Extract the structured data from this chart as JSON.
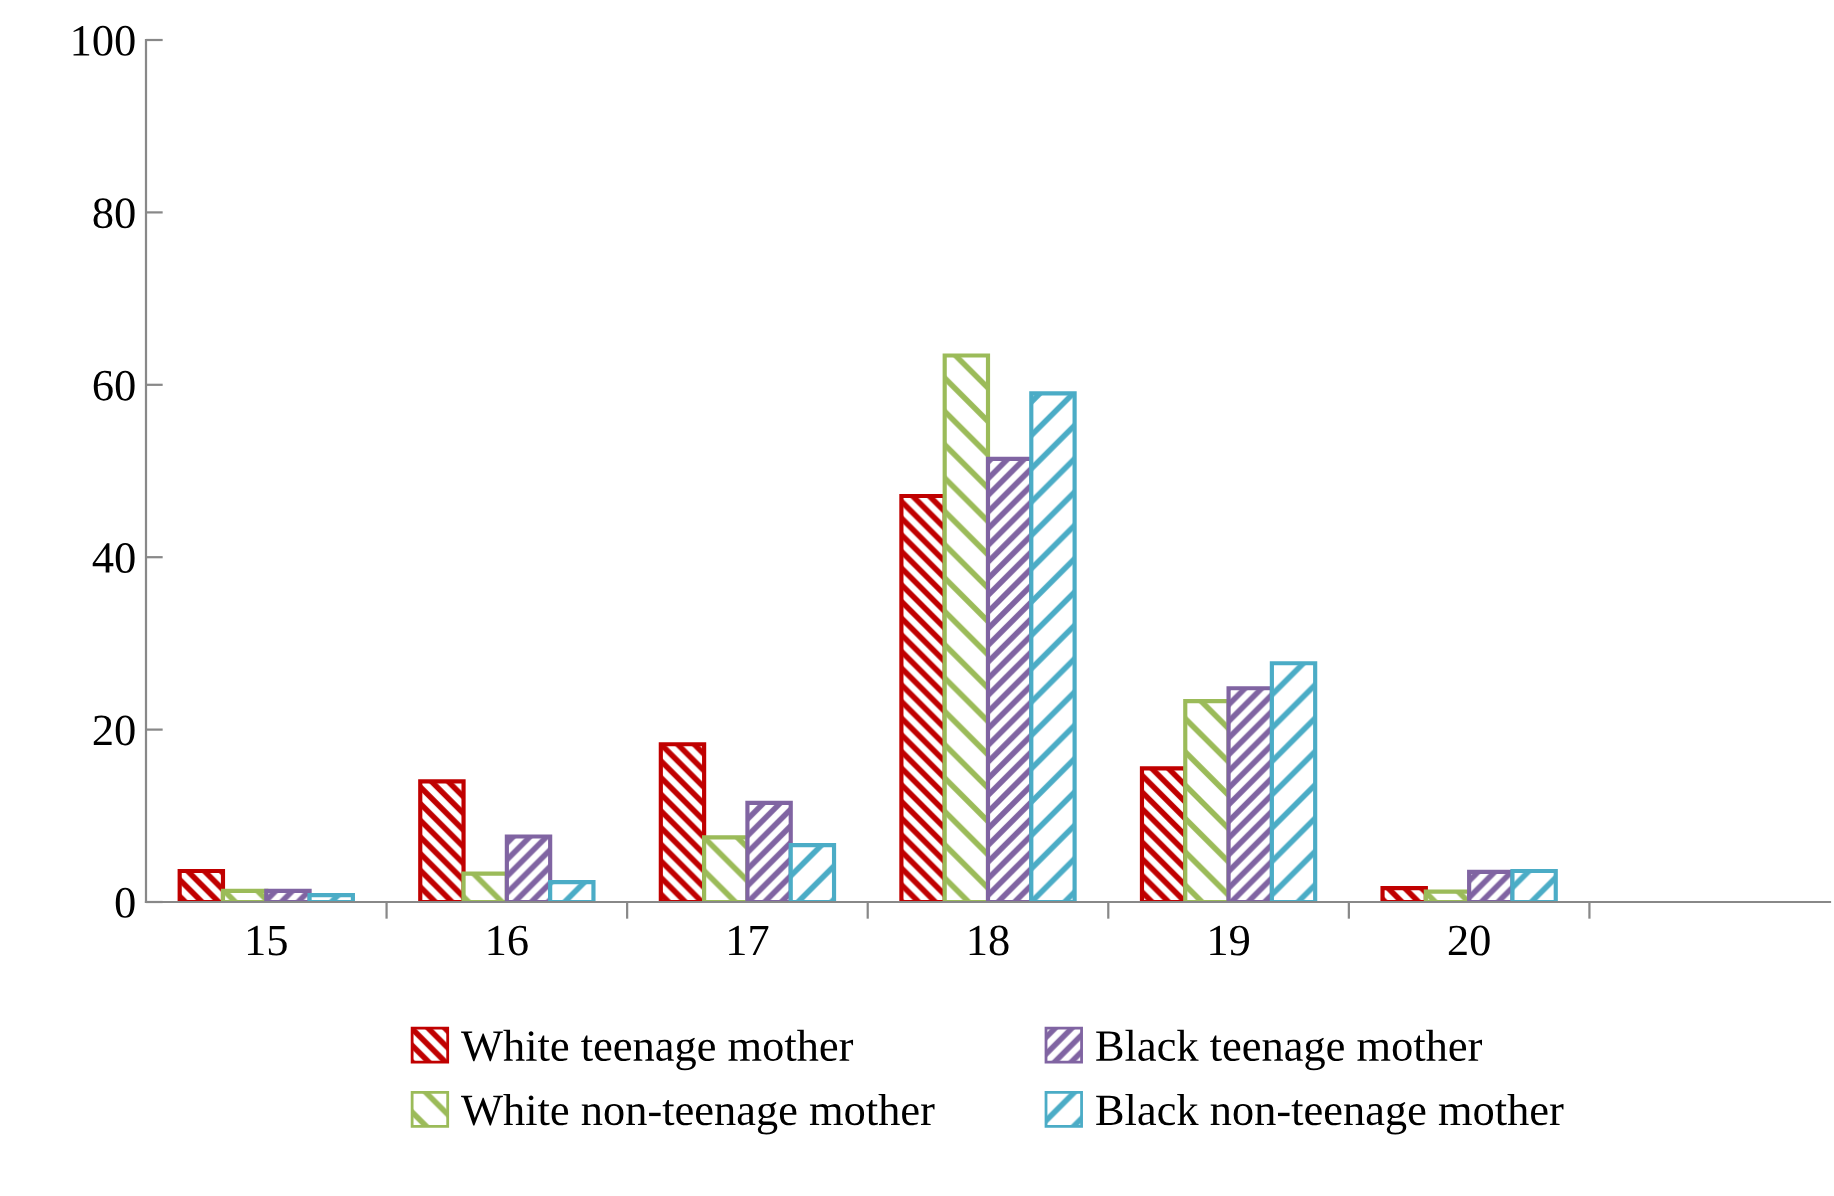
{
  "chart_data": {
    "type": "bar",
    "categories": [
      "15",
      "16",
      "17",
      "18",
      "19",
      "20",
      null
    ],
    "series": [
      {
        "name": "White teenage mother",
        "color": "#c00000",
        "values": [
          3.6,
          14.0,
          18.3,
          47.1,
          15.5,
          1.6,
          null
        ]
      },
      {
        "name": "White non-teenage mother",
        "color": "#9bbb59",
        "values": [
          1.3,
          3.3,
          7.5,
          63.4,
          23.3,
          1.2,
          null
        ]
      },
      {
        "name": "Black teenage mother",
        "color": "#8064a2",
        "values": [
          1.3,
          7.6,
          11.5,
          51.4,
          24.8,
          3.5,
          null
        ]
      },
      {
        "name": "Black non-teenage mother",
        "color": "#4bacc6",
        "values": [
          0.8,
          2.3,
          6.6,
          59.0,
          27.7,
          3.6,
          null
        ]
      }
    ],
    "ylim": [
      0,
      100
    ],
    "yticks": [
      0,
      20,
      40,
      60,
      80,
      100
    ],
    "grid": false,
    "legend": "bottom"
  }
}
